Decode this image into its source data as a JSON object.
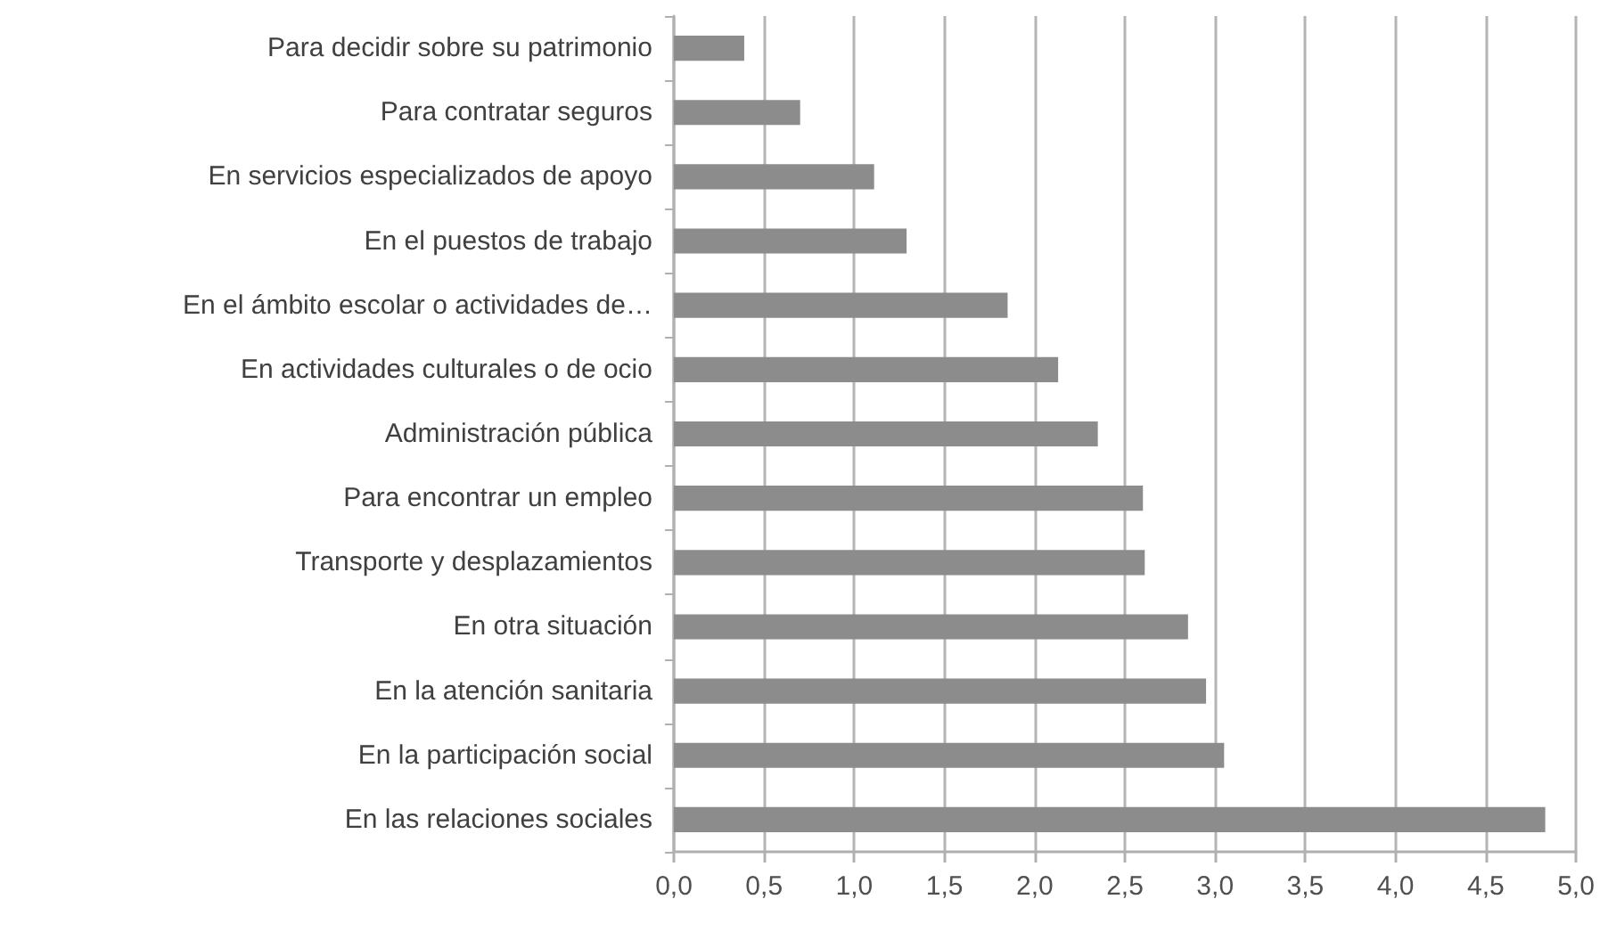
{
  "chart_data": {
    "type": "bar",
    "orientation": "horizontal",
    "categories": [
      "Para decidir sobre su patrimonio",
      "Para contratar seguros",
      "En servicios especializados de apoyo",
      "En el puestos de trabajo",
      "En el ámbito escolar o actividades de…",
      "En actividades culturales o de ocio",
      "Administración pública",
      "Para encontrar un empleo",
      "Transporte y desplazamientos",
      "En otra situación",
      "En la atención sanitaria",
      "En la participación social",
      "En las relaciones sociales"
    ],
    "values": [
      0.39,
      0.7,
      1.11,
      1.29,
      1.85,
      2.13,
      2.35,
      2.6,
      2.61,
      2.85,
      2.95,
      3.05,
      4.83
    ],
    "color": "#8c8c8c",
    "xlim": [
      0,
      5
    ],
    "xticks": [
      {
        "value": 0,
        "label": "0,0"
      },
      {
        "value": 0.5,
        "label": "0,5"
      },
      {
        "value": 1,
        "label": "1,0"
      },
      {
        "value": 1.5,
        "label": "1,5"
      },
      {
        "value": 2,
        "label": "2,0"
      },
      {
        "value": 2.5,
        "label": "2,5"
      },
      {
        "value": 3,
        "label": "3,0"
      },
      {
        "value": 3.5,
        "label": "3,5"
      },
      {
        "value": 4,
        "label": "4,0"
      },
      {
        "value": 4.5,
        "label": "4,5"
      },
      {
        "value": 5,
        "label": "5,0"
      }
    ],
    "grid": "x"
  }
}
